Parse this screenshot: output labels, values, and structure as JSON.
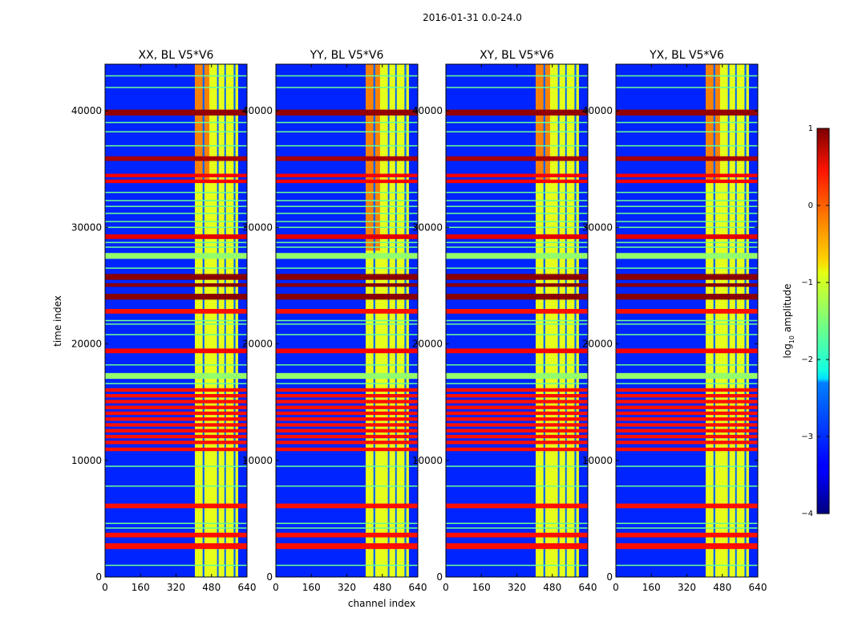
{
  "figure": {
    "suptitle": "2016-01-31 0.0-24.0"
  },
  "chart_data": {
    "type": "heatmap",
    "panels": [
      {
        "title": "XX, BL V5*V6"
      },
      {
        "title": "YY, BL V5*V6"
      },
      {
        "title": "XY, BL V5*V6"
      },
      {
        "title": "YX, BL V5*V6"
      }
    ],
    "xlabel": "channel index",
    "ylabel": "time index",
    "xlim": [
      0,
      640
    ],
    "ylim": [
      0,
      44000
    ],
    "xticks": [
      0,
      160,
      320,
      480,
      640
    ],
    "yticks": [
      0,
      10000,
      20000,
      30000,
      40000
    ],
    "colorbar": {
      "label": "log10 amplitude",
      "label_main": "log",
      "label_sub": "10",
      "label_tail": " amplitude",
      "range": [
        -4,
        1
      ],
      "ticks": [
        {
          "value": 1,
          "label": "1"
        },
        {
          "value": 0,
          "label": "0"
        },
        {
          "value": -1,
          "label": "−1"
        },
        {
          "value": -2,
          "label": "−2"
        },
        {
          "value": -3,
          "label": "−3"
        },
        {
          "value": -4,
          "label": "−4"
        }
      ]
    },
    "background_level": -3.2,
    "signal_channel_range": [
      405,
      600
    ],
    "signal_level": -1.0,
    "signal_channel_gaps": [
      [
        440,
        448
      ],
      [
        505,
        512
      ],
      [
        538,
        545
      ],
      [
        580,
        588
      ]
    ],
    "high_channel_range": [
      405,
      470
    ],
    "high_level": 0.0,
    "flagged_time_bands": [
      {
        "start": 2400,
        "end": 2900,
        "level": 0.3
      },
      {
        "start": 3400,
        "end": 3800,
        "level": 0.3
      },
      {
        "start": 5900,
        "end": 6300,
        "level": 0.3
      },
      {
        "start": 10800,
        "end": 11100,
        "level": 0.3
      },
      {
        "start": 11400,
        "end": 11700,
        "level": 0.3
      },
      {
        "start": 11900,
        "end": 12200,
        "level": 0.3
      },
      {
        "start": 12400,
        "end": 12700,
        "level": 0.3
      },
      {
        "start": 12900,
        "end": 13200,
        "level": 0.3
      },
      {
        "start": 13400,
        "end": 13700,
        "level": 0.3
      },
      {
        "start": 13900,
        "end": 14200,
        "level": 0.3
      },
      {
        "start": 14400,
        "end": 14700,
        "level": 0.3
      },
      {
        "start": 14900,
        "end": 15200,
        "level": 0.3
      },
      {
        "start": 15400,
        "end": 15700,
        "level": 0.3
      },
      {
        "start": 15900,
        "end": 16200,
        "level": 0.3
      },
      {
        "start": 17000,
        "end": 17500,
        "level": -1.4
      },
      {
        "start": 19200,
        "end": 19600,
        "level": 0.4
      },
      {
        "start": 22600,
        "end": 23000,
        "level": 0.3
      },
      {
        "start": 23800,
        "end": 24300,
        "level": 0.95
      },
      {
        "start": 24900,
        "end": 25200,
        "level": 0.95
      },
      {
        "start": 25500,
        "end": 26000,
        "level": 0.95
      },
      {
        "start": 27300,
        "end": 27800,
        "level": -1.4
      },
      {
        "start": 29000,
        "end": 29400,
        "level": 0.5
      },
      {
        "start": 33800,
        "end": 34100,
        "level": 0.4
      },
      {
        "start": 34300,
        "end": 34600,
        "level": 0.4
      },
      {
        "start": 35700,
        "end": 36100,
        "level": 0.8
      },
      {
        "start": 39600,
        "end": 40100,
        "level": 0.9
      }
    ],
    "thin_time_lines": [
      1000,
      4200,
      4600,
      7800,
      9500,
      16600,
      18200,
      20800,
      21700,
      22000,
      25000,
      26500,
      28300,
      28700,
      30000,
      30500,
      31200,
      31800,
      32300,
      33000,
      37000,
      38200,
      39000,
      42000,
      43000
    ]
  }
}
